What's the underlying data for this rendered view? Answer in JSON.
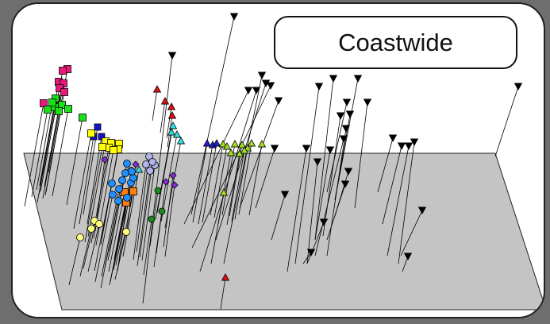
{
  "title": "Coastwide",
  "colors": {
    "background": "#6e6e6e",
    "panel": "#ffffff",
    "plane": "#c4c4c4",
    "stem": "#000000"
  },
  "markers": {
    "magenta_square": "#e8197a",
    "green_square": "#19e019",
    "yellow_square": "#ffff00",
    "navy_square": "#1414c8",
    "purple_diamond": "#8a2be2",
    "orange_square": "#ff7f0e",
    "blue_circle": "#1e90ff",
    "lavender_circle": "#b0b4e8",
    "pale_yellow_circle": "#ffff80",
    "dark_green_circle": "#1a8a1a",
    "red_triangle": "#e01010",
    "cyan_triangle": "#33e0e0",
    "blue_triangle": "#2020d0",
    "yellowgreen_triangle": "#a0e020",
    "black_down_triangle": "#000000"
  }
}
